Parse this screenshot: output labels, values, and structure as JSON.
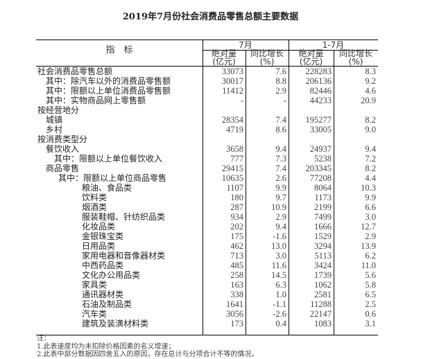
{
  "title": "2019年7月份社会消费品零售总额主要数据",
  "header": {
    "indicator": "指　标",
    "period1": "7月",
    "period2": "1-7月",
    "abs_label": "绝对量",
    "abs_unit": "(亿元)",
    "growth_label": "同比增长",
    "growth_unit": "(%)"
  },
  "rows": [
    {
      "label": "社会消费品零售总额",
      "level": 0,
      "m_abs": "33073",
      "m_growth": "7.6",
      "ytd_abs": "228283",
      "ytd_growth": "8.3"
    },
    {
      "label": "其中：除汽车以外的消费品零售额",
      "level": 1,
      "m_abs": "30017",
      "m_growth": "8.8",
      "ytd_abs": "206136",
      "ytd_growth": "9.2"
    },
    {
      "label": "其中：限额以上单位消费品零售额",
      "level": 1,
      "m_abs": "11412",
      "m_growth": "2.9",
      "ytd_abs": "82446",
      "ytd_growth": "4.6"
    },
    {
      "label": "其中：实物商品网上零售额",
      "level": 1,
      "m_abs": "-",
      "m_growth": "-",
      "ytd_abs": "44233",
      "ytd_growth": "20.9"
    },
    {
      "label": "按经营地分",
      "level": 0,
      "m_abs": "",
      "m_growth": "",
      "ytd_abs": "",
      "ytd_growth": ""
    },
    {
      "label": "城镇",
      "level": 1,
      "m_abs": "28354",
      "m_growth": "7.4",
      "ytd_abs": "195277",
      "ytd_growth": "8.2"
    },
    {
      "label": "乡村",
      "level": 1,
      "m_abs": "4719",
      "m_growth": "8.6",
      "ytd_abs": "33005",
      "ytd_growth": "9.0"
    },
    {
      "label": "按消费类型分",
      "level": 0,
      "m_abs": "",
      "m_growth": "",
      "ytd_abs": "",
      "ytd_growth": ""
    },
    {
      "label": "餐饮收入",
      "level": 1,
      "m_abs": "3658",
      "m_growth": "9.4",
      "ytd_abs": "24937",
      "ytd_growth": "9.4"
    },
    {
      "label": "其中：限额以上单位餐饮收入",
      "level": 2,
      "m_abs": "777",
      "m_growth": "7.3",
      "ytd_abs": "5238",
      "ytd_growth": "7.2"
    },
    {
      "label": "商品零售",
      "level": 1,
      "m_abs": "29415",
      "m_growth": "7.4",
      "ytd_abs": "203345",
      "ytd_growth": "8.2"
    },
    {
      "label": "其中：限额以上单位商品零售",
      "level": 3,
      "m_abs": "10635",
      "m_growth": "2.6",
      "ytd_abs": "77208",
      "ytd_growth": "4.4"
    },
    {
      "label": "粮油、食品类",
      "level": 4,
      "m_abs": "1107",
      "m_growth": "9.9",
      "ytd_abs": "8064",
      "ytd_growth": "10.3"
    },
    {
      "label": "饮料类",
      "level": 4,
      "m_abs": "180",
      "m_growth": "9.7",
      "ytd_abs": "1173",
      "ytd_growth": "9.9"
    },
    {
      "label": "烟酒类",
      "level": 4,
      "m_abs": "287",
      "m_growth": "10.9",
      "ytd_abs": "2199",
      "ytd_growth": "6.6"
    },
    {
      "label": "服装鞋帽、针纺织品类",
      "level": 4,
      "m_abs": "934",
      "m_growth": "2.9",
      "ytd_abs": "7499",
      "ytd_growth": "3.0"
    },
    {
      "label": "化妆品类",
      "level": 4,
      "m_abs": "202",
      "m_growth": "9.4",
      "ytd_abs": "1666",
      "ytd_growth": "12.7"
    },
    {
      "label": "金银珠宝类",
      "level": 4,
      "m_abs": "175",
      "m_growth": "-1.6",
      "ytd_abs": "1529",
      "ytd_growth": "2.9"
    },
    {
      "label": "日用品类",
      "level": 4,
      "m_abs": "462",
      "m_growth": "13.0",
      "ytd_abs": "3294",
      "ytd_growth": "13.9"
    },
    {
      "label": "家用电器和音像器材类",
      "level": 4,
      "m_abs": "713",
      "m_growth": "3.0",
      "ytd_abs": "5113",
      "ytd_growth": "6.2"
    },
    {
      "label": "中西药品类",
      "level": 4,
      "m_abs": "485",
      "m_growth": "11.6",
      "ytd_abs": "3424",
      "ytd_growth": "11.0"
    },
    {
      "label": "文化办公用品类",
      "level": 4,
      "m_abs": "258",
      "m_growth": "14.5",
      "ytd_abs": "1739",
      "ytd_growth": "5.6"
    },
    {
      "label": "家具类",
      "level": 4,
      "m_abs": "163",
      "m_growth": "6.3",
      "ytd_abs": "1062",
      "ytd_growth": "5.8"
    },
    {
      "label": "通讯器材类",
      "level": 4,
      "m_abs": "338",
      "m_growth": "1.0",
      "ytd_abs": "2581",
      "ytd_growth": "6.5"
    },
    {
      "label": "石油及制品类",
      "level": 4,
      "m_abs": "1641",
      "m_growth": "-1.1",
      "ytd_abs": "11288",
      "ytd_growth": "2.5"
    },
    {
      "label": "汽车类",
      "level": 4,
      "m_abs": "3056",
      "m_growth": "-2.6",
      "ytd_abs": "22147",
      "ytd_growth": "0.6"
    },
    {
      "label": "建筑及装潢材料类",
      "level": 4,
      "m_abs": "173",
      "m_growth": "0.4",
      "ytd_abs": "1083",
      "ytd_growth": "3.1"
    }
  ],
  "notes": {
    "heading": "注：",
    "items": [
      "1.此表速度均为未扣除价格因素的名义增速；",
      "2.此表中部分数据因四舍五入的原因，存在总计与分项合计不等的情况。"
    ]
  }
}
